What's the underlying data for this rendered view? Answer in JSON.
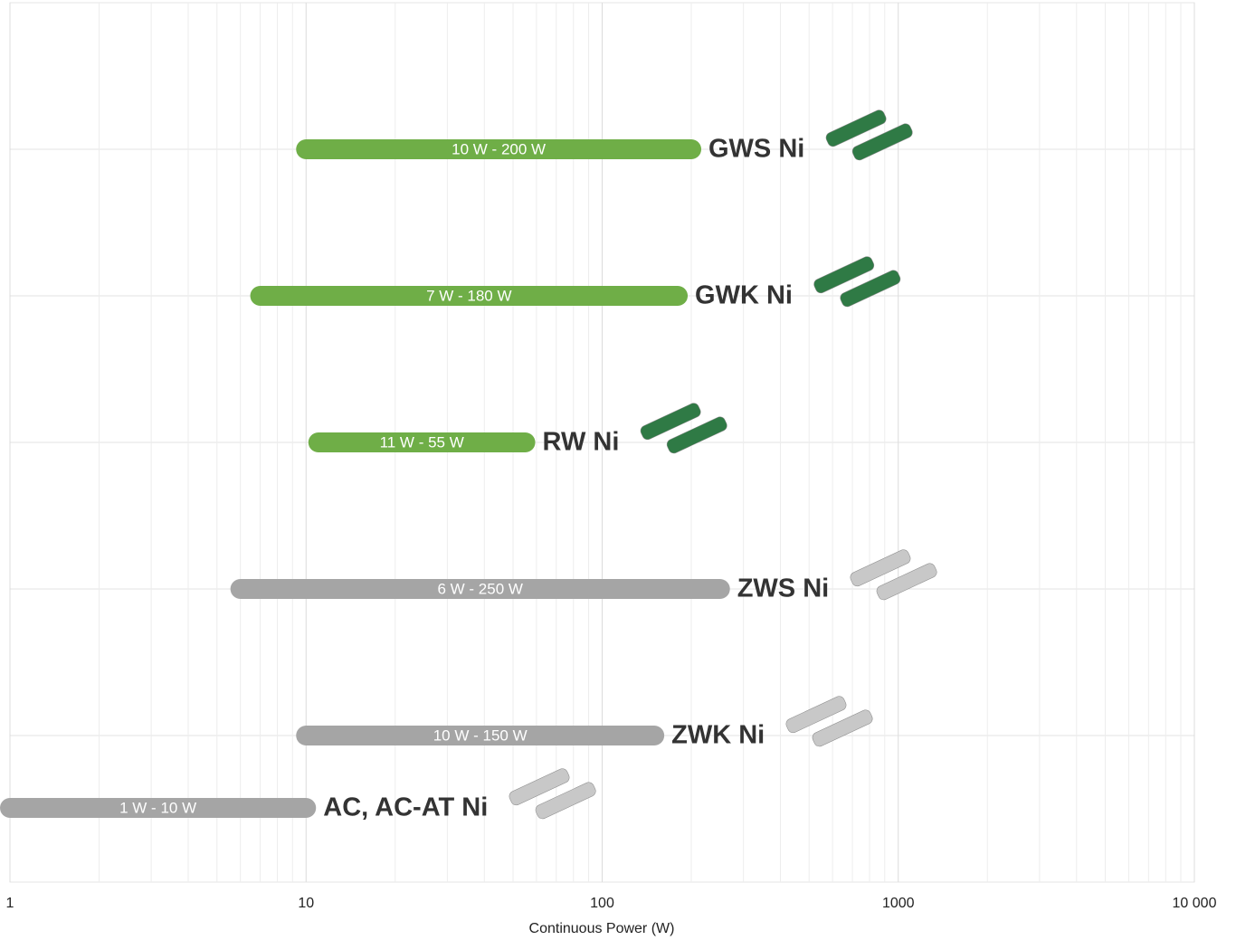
{
  "chart_data": {
    "type": "range-bar",
    "categories": [
      "GWS Ni",
      "GWK Ni",
      "RW Ni",
      "ZWS Ni",
      "ZWK Ni",
      "AC, AC-AT Ni"
    ],
    "values": [
      [
        10,
        200
      ],
      [
        7,
        180
      ],
      [
        11,
        55
      ],
      [
        6,
        250
      ],
      [
        10,
        150
      ],
      [
        1,
        10
      ]
    ],
    "value_labels": [
      "10 W - 200 W",
      "7 W - 180 W",
      "11 W - 55 W",
      "6 W - 250 W",
      "10 W - 150 W",
      "1 W - 10 W"
    ],
    "colors": [
      "#6fae47",
      "#6fae47",
      "#6fae47",
      "#a5a5a5",
      "#a5a5a5",
      "#a5a5a5"
    ],
    "xlabel": "Continuous Power (W)",
    "xscale": "log",
    "xlim": [
      1,
      10000
    ],
    "xticks": [
      1,
      10,
      100,
      1000,
      {
        "value": 10000,
        "label": "10 000"
      }
    ],
    "grid": true,
    "minor_grid": true
  }
}
